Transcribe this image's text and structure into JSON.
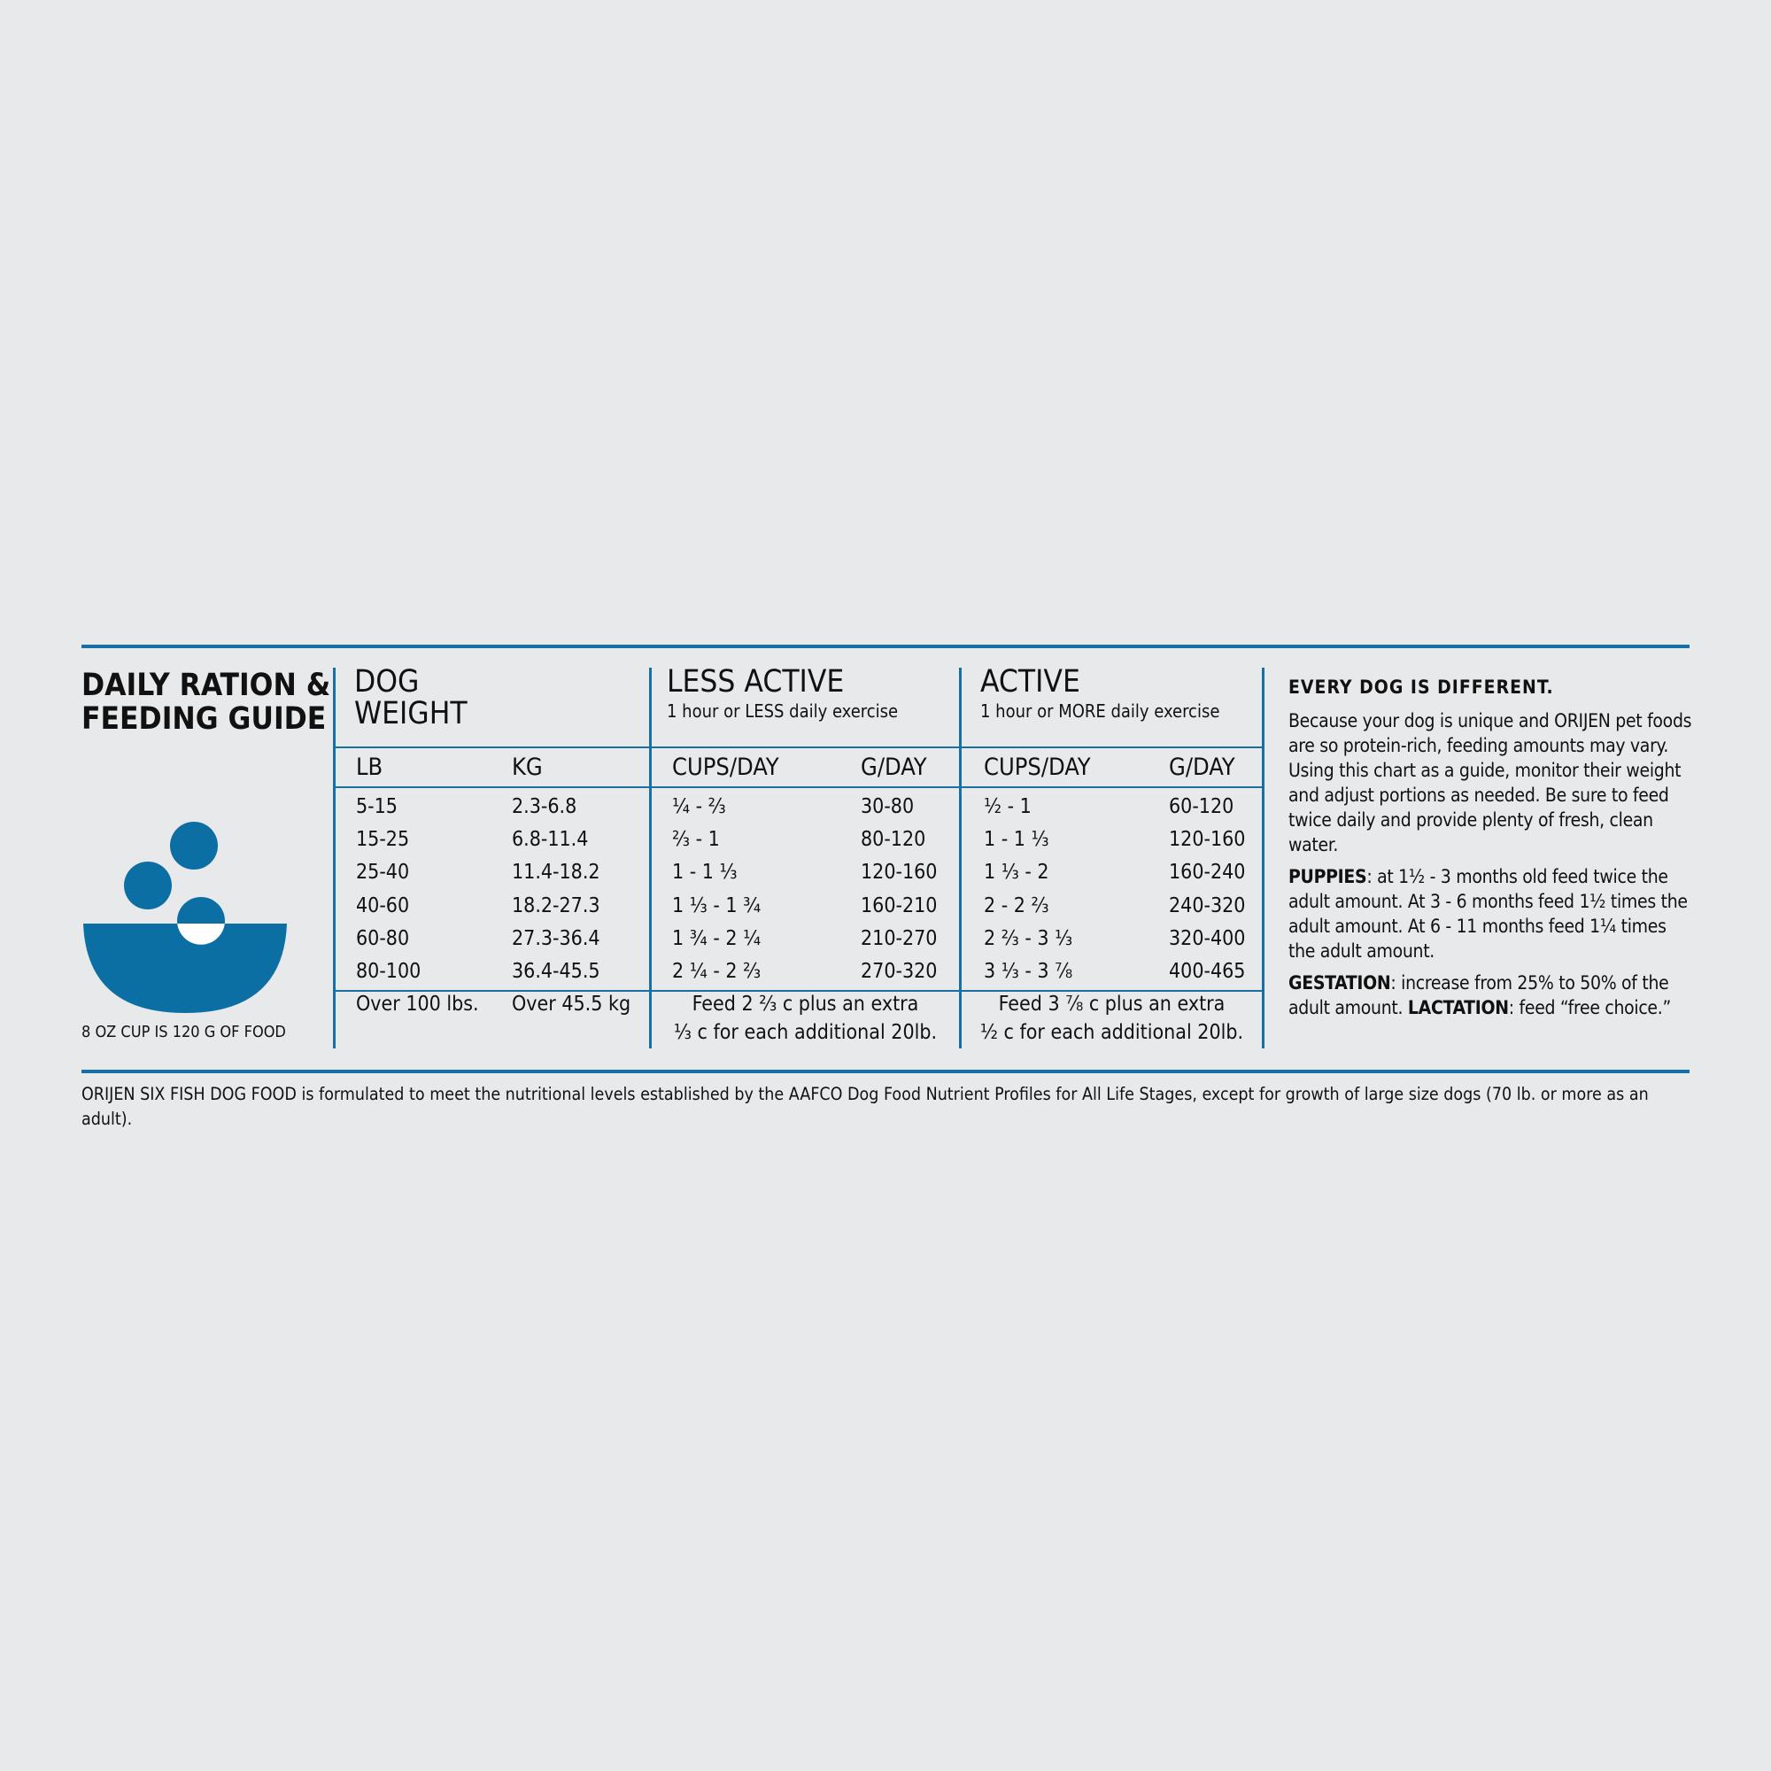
{
  "header": {
    "title_lines": [
      "DAILY RATION &",
      "FEEDING GUIDE"
    ],
    "cup_note": "8 OZ CUP IS 120 G OF FOOD"
  },
  "table": {
    "groups": [
      {
        "title_lines": [
          "DOG",
          "WEIGHT"
        ],
        "subtitle": null,
        "columns": [
          "LB",
          "KG"
        ]
      },
      {
        "title_lines": [
          "LESS ACTIVE"
        ],
        "subtitle": "1 hour or LESS daily exercise",
        "columns": [
          "CUPS/DAY",
          "G/DAY"
        ]
      },
      {
        "title_lines": [
          "ACTIVE"
        ],
        "subtitle": "1 hour or MORE daily exercise",
        "columns": [
          "CUPS/DAY",
          "G/DAY"
        ]
      }
    ],
    "rows": [
      [
        "5-15",
        "2.3-6.8",
        "¼ - ⅔",
        "30-80",
        "½ - 1",
        "60-120"
      ],
      [
        "15-25",
        "6.8-11.4",
        "⅔ - 1",
        "80-120",
        "1 - 1 ⅓",
        "120-160"
      ],
      [
        "25-40",
        "11.4-18.2",
        "1 - 1 ⅓",
        "120-160",
        "1 ⅓ - 2",
        "160-240"
      ],
      [
        "40-60",
        "18.2-27.3",
        "1 ⅓ - 1 ¾",
        "160-210",
        "2 - 2 ⅔",
        "240-320"
      ],
      [
        "60-80",
        "27.3-36.4",
        "1 ¾ - 2 ¼",
        "210-270",
        "2 ⅔ - 3 ⅓",
        "320-400"
      ],
      [
        "80-100",
        "36.4-45.5",
        "2 ¼ - 2 ⅔",
        "270-320",
        "3 ⅓ - 3 ⅞",
        "400-465"
      ]
    ],
    "over_row": {
      "lb": "Over 100 lbs.",
      "kg": "Over 45.5 kg",
      "less_active_lines": [
        "Feed 2 ⅔ c plus an extra",
        "⅓ c for each additional 20lb."
      ],
      "active_lines": [
        "Feed 3 ⅞ c plus an extra",
        "½ c for each additional 20lb."
      ]
    }
  },
  "notes": {
    "heading": "EVERY DOG IS DIFFERENT.",
    "intro": "Because your dog is unique and ORIJEN pet foods are so protein-rich, feeding amounts may vary. Using this chart as a guide, monitor their weight and adjust portions as needed. Be sure to feed twice daily and provide plenty of fresh, clean water.",
    "puppies_label": "PUPPIES",
    "puppies_text": ": at 1½ - 3 months old feed twice the adult amount. At 3 - 6 months feed 1½ times the adult amount. At 6 - 11 months feed 1¼ times the adult amount.",
    "gestation_label": "GESTATION",
    "gestation_text": ": increase from 25% to 50% of the adult amount. ",
    "lactation_label": "LACTATION",
    "lactation_text": ": feed “free choice.”"
  },
  "footnote": "ORIJEN SIX FISH DOG FOOD is formulated to meet the nutritional levels established by the AAFCO Dog Food Nutrient Profiles for All Life Stages, except for growth of large size dogs (70 lb. or more as an adult)."
}
